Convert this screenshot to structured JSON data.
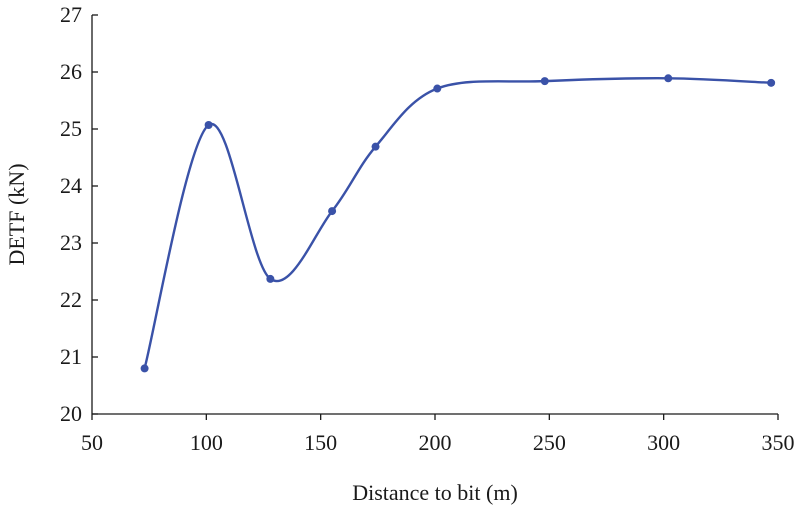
{
  "chart_data": {
    "type": "line",
    "title": "",
    "xlabel": "Distance to bit (m)",
    "ylabel": "DETF (kN)",
    "xlim": [
      50,
      350
    ],
    "ylim": [
      20,
      27
    ],
    "xticks": [
      "50",
      "100",
      "150",
      "200",
      "250",
      "300",
      "350"
    ],
    "yticks": [
      "20",
      "21",
      "22",
      "23",
      "24",
      "25",
      "26",
      "27"
    ],
    "grid": false,
    "smooth": true,
    "series": [
      {
        "color": "#3a52a8",
        "x": [
          73,
          101,
          128,
          155,
          174,
          201,
          248,
          302,
          347
        ],
        "y": [
          20.8,
          25.07,
          22.37,
          23.56,
          24.69,
          25.71,
          25.84,
          25.89,
          25.81
        ]
      }
    ]
  }
}
